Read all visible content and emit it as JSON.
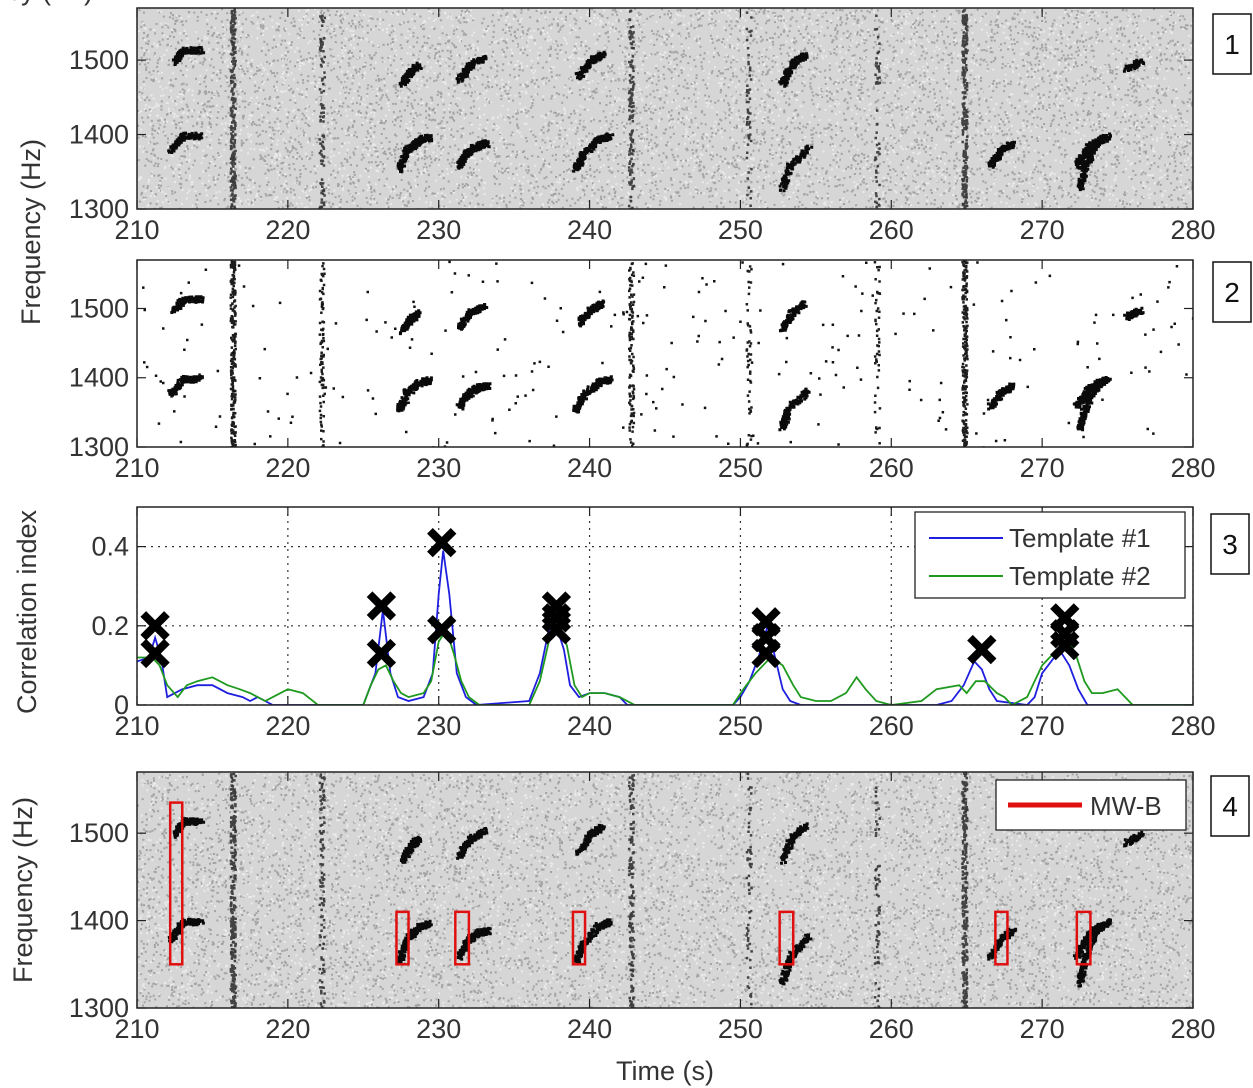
{
  "chart_data": [
    {
      "panel": "1",
      "type": "heatmap",
      "description_kind": "spectrogram",
      "xlabel": "",
      "ylabel": "Frequency (Hz)",
      "xlim": [
        210,
        280
      ],
      "ylim": [
        1300,
        1570
      ],
      "xticks": [
        210,
        220,
        230,
        240,
        250,
        260,
        270,
        280
      ],
      "yticks": [
        1300,
        1400,
        1500
      ]
    },
    {
      "panel": "2",
      "type": "scatter",
      "description_kind": "binarized spectrogram",
      "xlabel": "",
      "ylabel": "",
      "xlim": [
        210,
        280
      ],
      "ylim": [
        1300,
        1570
      ],
      "xticks": [
        210,
        220,
        230,
        240,
        250,
        260,
        270,
        280
      ],
      "yticks": [
        1300,
        1400,
        1500
      ]
    },
    {
      "panel": "3",
      "type": "line",
      "xlabel": "",
      "ylabel": "Correlation index",
      "xlim": [
        210,
        280
      ],
      "ylim": [
        0,
        0.5
      ],
      "xticks": [
        210,
        220,
        230,
        240,
        250,
        260,
        270,
        280
      ],
      "yticks": [
        0,
        0.2,
        0.4
      ],
      "yticklabels": [
        "0",
        "0.2",
        "0.4"
      ],
      "grid": true,
      "legend_position": "top-right",
      "series": [
        {
          "name": "Template #1",
          "color": "#1f1fe0",
          "points": [
            [
              210,
              0.11
            ],
            [
              210.8,
              0.12
            ],
            [
              211.2,
              0.17
            ],
            [
              211.6,
              0.12
            ],
            [
              212,
              0.02
            ],
            [
              213,
              0.04
            ],
            [
              214,
              0.05
            ],
            [
              215,
              0.05
            ],
            [
              216,
              0.03
            ],
            [
              217,
              0.02
            ],
            [
              217.5,
              0.01
            ],
            [
              218,
              0.02
            ],
            [
              219,
              0.0
            ],
            [
              225,
              0.0
            ],
            [
              225.3,
              0.03
            ],
            [
              225.8,
              0.08
            ],
            [
              226.3,
              0.24
            ],
            [
              226.8,
              0.08
            ],
            [
              227.3,
              0.02
            ],
            [
              228,
              0.01
            ],
            [
              229,
              0.02
            ],
            [
              229.6,
              0.08
            ],
            [
              230,
              0.28
            ],
            [
              230.3,
              0.39
            ],
            [
              230.7,
              0.28
            ],
            [
              231.2,
              0.08
            ],
            [
              231.8,
              0.02
            ],
            [
              232.5,
              0.0
            ],
            [
              236,
              0.01
            ],
            [
              236.7,
              0.08
            ],
            [
              237.3,
              0.19
            ],
            [
              237.8,
              0.2
            ],
            [
              238.3,
              0.14
            ],
            [
              238.7,
              0.05
            ],
            [
              239.3,
              0.02
            ],
            [
              240,
              0.03
            ],
            [
              241,
              0.03
            ],
            [
              242,
              0.02
            ],
            [
              242.5,
              0.0
            ],
            [
              249.5,
              0.0
            ],
            [
              250,
              0.02
            ],
            [
              250.6,
              0.06
            ],
            [
              251.2,
              0.12
            ],
            [
              251.8,
              0.2
            ],
            [
              252.3,
              0.12
            ],
            [
              252.8,
              0.04
            ],
            [
              253.3,
              0.01
            ],
            [
              254,
              0.0
            ],
            [
              263,
              0.0
            ],
            [
              264,
              0.01
            ],
            [
              264.8,
              0.05
            ],
            [
              265.5,
              0.11
            ],
            [
              266,
              0.09
            ],
            [
              266.5,
              0.04
            ],
            [
              267,
              0.01
            ],
            [
              269,
              0.0
            ],
            [
              269.5,
              0.02
            ],
            [
              270,
              0.08
            ],
            [
              270.8,
              0.12
            ],
            [
              271.3,
              0.13
            ],
            [
              271.8,
              0.1
            ],
            [
              272.4,
              0.04
            ],
            [
              273,
              0.0
            ],
            [
              280,
              0.0
            ]
          ]
        },
        {
          "name": "Template #2",
          "color": "#1f9a1f",
          "points": [
            [
              210,
              0.12
            ],
            [
              211,
              0.12
            ],
            [
              211.5,
              0.1
            ],
            [
              212,
              0.05
            ],
            [
              212.7,
              0.02
            ],
            [
              213.3,
              0.05
            ],
            [
              214,
              0.06
            ],
            [
              215,
              0.07
            ],
            [
              216,
              0.05
            ],
            [
              216.8,
              0.04
            ],
            [
              217.5,
              0.03
            ],
            [
              218.5,
              0.01
            ],
            [
              219,
              0.02
            ],
            [
              220,
              0.04
            ],
            [
              221,
              0.03
            ],
            [
              222,
              0.0
            ],
            [
              225,
              0.0
            ],
            [
              225.5,
              0.05
            ],
            [
              226,
              0.09
            ],
            [
              226.5,
              0.1
            ],
            [
              227,
              0.06
            ],
            [
              227.5,
              0.03
            ],
            [
              228,
              0.02
            ],
            [
              229,
              0.03
            ],
            [
              229.5,
              0.06
            ],
            [
              230,
              0.16
            ],
            [
              230.5,
              0.19
            ],
            [
              231,
              0.13
            ],
            [
              231.5,
              0.06
            ],
            [
              232,
              0.02
            ],
            [
              232.7,
              0.0
            ],
            [
              236,
              0.0
            ],
            [
              236.7,
              0.06
            ],
            [
              237.3,
              0.16
            ],
            [
              238,
              0.2
            ],
            [
              238.5,
              0.15
            ],
            [
              239,
              0.05
            ],
            [
              239.5,
              0.02
            ],
            [
              240,
              0.03
            ],
            [
              241,
              0.03
            ],
            [
              242,
              0.02
            ],
            [
              243,
              0.0
            ],
            [
              249.5,
              0.0
            ],
            [
              250.2,
              0.04
            ],
            [
              251,
              0.08
            ],
            [
              252,
              0.12
            ],
            [
              252.8,
              0.1
            ],
            [
              253.5,
              0.05
            ],
            [
              254,
              0.02
            ],
            [
              255,
              0.01
            ],
            [
              256,
              0.01
            ],
            [
              257,
              0.03
            ],
            [
              257.7,
              0.07
            ],
            [
              258.3,
              0.04
            ],
            [
              259,
              0.01
            ],
            [
              260,
              0.0
            ],
            [
              262,
              0.01
            ],
            [
              263,
              0.04
            ],
            [
              264.5,
              0.05
            ],
            [
              265,
              0.03
            ],
            [
              265.6,
              0.06
            ],
            [
              266.2,
              0.06
            ],
            [
              267,
              0.03
            ],
            [
              267.5,
              0.02
            ],
            [
              268,
              0.0
            ],
            [
              269,
              0.02
            ],
            [
              270,
              0.1
            ],
            [
              271,
              0.14
            ],
            [
              271.8,
              0.16
            ],
            [
              272.3,
              0.12
            ],
            [
              272.8,
              0.06
            ],
            [
              273.3,
              0.03
            ],
            [
              274,
              0.03
            ],
            [
              275,
              0.04
            ],
            [
              275.5,
              0.02
            ],
            [
              276,
              0.0
            ],
            [
              280,
              0.0
            ]
          ]
        }
      ],
      "detections": [
        [
          211.2,
          0.2
        ],
        [
          211.2,
          0.13
        ],
        [
          226.2,
          0.25
        ],
        [
          226.2,
          0.13
        ],
        [
          230.2,
          0.41
        ],
        [
          230.2,
          0.19
        ],
        [
          237.8,
          0.25
        ],
        [
          237.8,
          0.22
        ],
        [
          237.8,
          0.19
        ],
        [
          251.7,
          0.21
        ],
        [
          251.7,
          0.17
        ],
        [
          251.7,
          0.13
        ],
        [
          266,
          0.14
        ],
        [
          271.5,
          0.22
        ],
        [
          271.5,
          0.18
        ],
        [
          271.5,
          0.15
        ]
      ]
    },
    {
      "panel": "4",
      "type": "heatmap",
      "description_kind": "spectrogram with detections",
      "xlabel": "Time (s)",
      "ylabel": "Frequency (Hz)",
      "xlim": [
        210,
        280
      ],
      "ylim": [
        1300,
        1570
      ],
      "xticks": [
        210,
        220,
        230,
        240,
        250,
        260,
        270,
        280
      ],
      "yticks": [
        1300,
        1400,
        1500
      ],
      "legend_position": "top-right",
      "legend": [
        {
          "name": "MW-B",
          "color": "#e01010"
        }
      ],
      "boxes": [
        {
          "x0": 212.2,
          "x1": 213.0,
          "y0": 1350,
          "y1": 1535
        },
        {
          "x0": 227.2,
          "x1": 228.0,
          "y0": 1350,
          "y1": 1410
        },
        {
          "x0": 231.1,
          "x1": 232.0,
          "y0": 1350,
          "y1": 1410
        },
        {
          "x0": 238.9,
          "x1": 239.7,
          "y0": 1350,
          "y1": 1410
        },
        {
          "x0": 252.6,
          "x1": 253.5,
          "y0": 1350,
          "y1": 1410
        },
        {
          "x0": 266.9,
          "x1": 267.7,
          "y0": 1350,
          "y1": 1410
        },
        {
          "x0": 272.3,
          "x1": 273.2,
          "y0": 1350,
          "y1": 1410
        }
      ]
    }
  ],
  "panel_labels": [
    "1",
    "2",
    "3",
    "4"
  ]
}
